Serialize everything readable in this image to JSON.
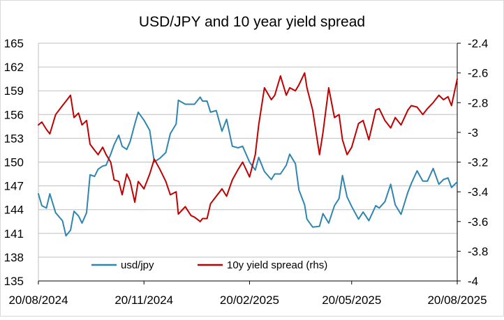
{
  "chart_data": {
    "type": "line",
    "title": "USD/JPY and 10 year yield spread",
    "x_tick_labels": [
      "20/08/2024",
      "20/11/2024",
      "20/02/2025",
      "20/05/2025",
      "20/08/2025"
    ],
    "x_tick_dates": [
      "2024-08-20",
      "2024-11-20",
      "2025-02-20",
      "2025-05-20",
      "2025-08-20"
    ],
    "xlim": [
      "2024-08-20",
      "2025-08-20"
    ],
    "y_left": {
      "ylim": [
        135,
        165
      ],
      "ticks": [
        135,
        138,
        141,
        144,
        147,
        150,
        153,
        156,
        159,
        162,
        165
      ]
    },
    "y_right": {
      "ylim": [
        -4.0,
        -2.4
      ],
      "inverted": true,
      "ticks": [
        -4,
        -3.8,
        -3.6,
        -3.4,
        -3.2,
        -3,
        -2.8,
        -2.6,
        -2.4
      ]
    },
    "grid": "horizontal",
    "legend_position": "bottom-inside",
    "series": [
      {
        "name": "usd/jpy",
        "axis": "left",
        "color": "#2E86B0",
        "x": [
          "2024-08-20",
          "2024-08-23",
          "2024-08-27",
          "2024-08-30",
          "2024-09-04",
          "2024-09-10",
          "2024-09-13",
          "2024-09-17",
          "2024-09-20",
          "2024-09-24",
          "2024-09-27",
          "2024-10-01",
          "2024-10-04",
          "2024-10-08",
          "2024-10-11",
          "2024-10-15",
          "2024-10-18",
          "2024-10-22",
          "2024-10-25",
          "2024-10-29",
          "2024-11-01",
          "2024-11-05",
          "2024-11-08",
          "2024-11-12",
          "2024-11-15",
          "2024-11-20",
          "2024-11-25",
          "2024-11-29",
          "2024-12-04",
          "2024-12-09",
          "2024-12-13",
          "2024-12-18",
          "2024-12-20",
          "2024-12-26",
          "2024-12-31",
          "2025-01-03",
          "2025-01-08",
          "2025-01-10",
          "2025-01-14",
          "2025-01-17",
          "2025-01-22",
          "2025-01-27",
          "2025-01-31",
          "2025-02-05",
          "2025-02-10",
          "2025-02-14",
          "2025-02-20",
          "2025-02-25",
          "2025-02-28",
          "2025-03-05",
          "2025-03-11",
          "2025-03-14",
          "2025-03-19",
          "2025-03-24",
          "2025-03-27",
          "2025-04-01",
          "2025-04-04",
          "2025-04-09",
          "2025-04-11",
          "2025-04-16",
          "2025-04-22",
          "2025-04-25",
          "2025-04-30",
          "2025-05-05",
          "2025-05-09",
          "2025-05-12",
          "2025-05-16",
          "2025-05-20",
          "2025-05-26",
          "2025-05-30",
          "2025-06-04",
          "2025-06-10",
          "2025-06-13",
          "2025-06-18",
          "2025-06-23",
          "2025-06-27",
          "2025-07-02",
          "2025-07-08",
          "2025-07-11",
          "2025-07-16",
          "2025-07-21",
          "2025-07-25",
          "2025-07-30",
          "2025-08-04",
          "2025-08-08",
          "2025-08-12",
          "2025-08-15",
          "2025-08-20"
        ],
        "values": [
          146.0,
          144.5,
          144.2,
          146.0,
          143.6,
          142.6,
          140.7,
          141.4,
          143.8,
          143.2,
          142.3,
          143.6,
          148.4,
          148.2,
          149.1,
          149.5,
          149.6,
          151.0,
          152.2,
          153.4,
          152.0,
          151.6,
          152.6,
          154.8,
          156.3,
          155.3,
          154.0,
          150.0,
          150.5,
          151.2,
          153.6,
          154.8,
          157.8,
          157.3,
          157.3,
          157.3,
          158.2,
          157.7,
          157.7,
          156.3,
          156.5,
          153.9,
          155.4,
          152.0,
          151.8,
          152.0,
          150.0,
          149.0,
          150.6,
          148.8,
          147.8,
          148.5,
          148.5,
          149.6,
          151.0,
          149.8,
          146.5,
          144.6,
          142.8,
          141.8,
          141.9,
          143.5,
          142.3,
          144.5,
          145.4,
          148.3,
          145.6,
          144.4,
          142.8,
          143.7,
          142.6,
          144.5,
          144.2,
          145.0,
          147.2,
          144.6,
          143.4,
          146.2,
          147.3,
          148.9,
          147.6,
          147.6,
          149.2,
          147.2,
          147.8,
          148.0,
          146.8,
          147.5
        ]
      },
      {
        "name": "10y yield spread (rhs)",
        "axis": "right",
        "color": "#C00000",
        "x": [
          "2024-08-20",
          "2024-08-23",
          "2024-08-27",
          "2024-08-30",
          "2024-09-04",
          "2024-09-10",
          "2024-09-13",
          "2024-09-17",
          "2024-09-20",
          "2024-09-24",
          "2024-09-27",
          "2024-10-01",
          "2024-10-04",
          "2024-10-08",
          "2024-10-11",
          "2024-10-15",
          "2024-10-18",
          "2024-10-22",
          "2024-10-25",
          "2024-10-29",
          "2024-11-01",
          "2024-11-05",
          "2024-11-08",
          "2024-11-12",
          "2024-11-15",
          "2024-11-20",
          "2024-11-25",
          "2024-11-29",
          "2024-12-04",
          "2024-12-09",
          "2024-12-13",
          "2024-12-18",
          "2024-12-20",
          "2024-12-26",
          "2024-12-31",
          "2025-01-03",
          "2025-01-08",
          "2025-01-10",
          "2025-01-14",
          "2025-01-17",
          "2025-01-22",
          "2025-01-27",
          "2025-01-31",
          "2025-02-05",
          "2025-02-10",
          "2025-02-14",
          "2025-02-20",
          "2025-02-25",
          "2025-02-28",
          "2025-03-05",
          "2025-03-11",
          "2025-03-14",
          "2025-03-19",
          "2025-03-24",
          "2025-03-27",
          "2025-04-01",
          "2025-04-04",
          "2025-04-09",
          "2025-04-11",
          "2025-04-16",
          "2025-04-22",
          "2025-04-25",
          "2025-04-30",
          "2025-05-05",
          "2025-05-09",
          "2025-05-12",
          "2025-05-16",
          "2025-05-20",
          "2025-05-26",
          "2025-05-30",
          "2025-06-04",
          "2025-06-10",
          "2025-06-13",
          "2025-06-18",
          "2025-06-23",
          "2025-06-27",
          "2025-07-02",
          "2025-07-08",
          "2025-07-11",
          "2025-07-16",
          "2025-07-21",
          "2025-07-25",
          "2025-07-30",
          "2025-08-04",
          "2025-08-08",
          "2025-08-12",
          "2025-08-15",
          "2025-08-20"
        ],
        "values": [
          -2.95,
          -2.93,
          -2.98,
          -3.01,
          -2.88,
          -2.82,
          -2.79,
          -2.75,
          -2.9,
          -2.87,
          -2.95,
          -2.92,
          -3.08,
          -3.12,
          -3.15,
          -3.1,
          -3.15,
          -3.2,
          -3.32,
          -3.33,
          -3.42,
          -3.28,
          -3.33,
          -3.47,
          -3.33,
          -3.38,
          -3.28,
          -3.18,
          -3.25,
          -3.33,
          -3.42,
          -3.4,
          -3.55,
          -3.5,
          -3.56,
          -3.57,
          -3.6,
          -3.58,
          -3.58,
          -3.48,
          -3.43,
          -3.38,
          -3.43,
          -3.32,
          -3.25,
          -3.2,
          -3.3,
          -3.15,
          -2.95,
          -2.7,
          -2.78,
          -2.75,
          -2.62,
          -2.75,
          -2.7,
          -2.72,
          -2.68,
          -2.6,
          -2.7,
          -2.85,
          -3.15,
          -3.0,
          -2.7,
          -2.9,
          -2.88,
          -3.05,
          -3.15,
          -3.1,
          -2.94,
          -2.92,
          -3.05,
          -2.85,
          -2.84,
          -2.92,
          -2.97,
          -2.9,
          -2.95,
          -2.85,
          -2.82,
          -2.83,
          -2.88,
          -2.84,
          -2.8,
          -2.75,
          -2.78,
          -2.76,
          -2.82,
          -2.64
        ]
      }
    ]
  }
}
